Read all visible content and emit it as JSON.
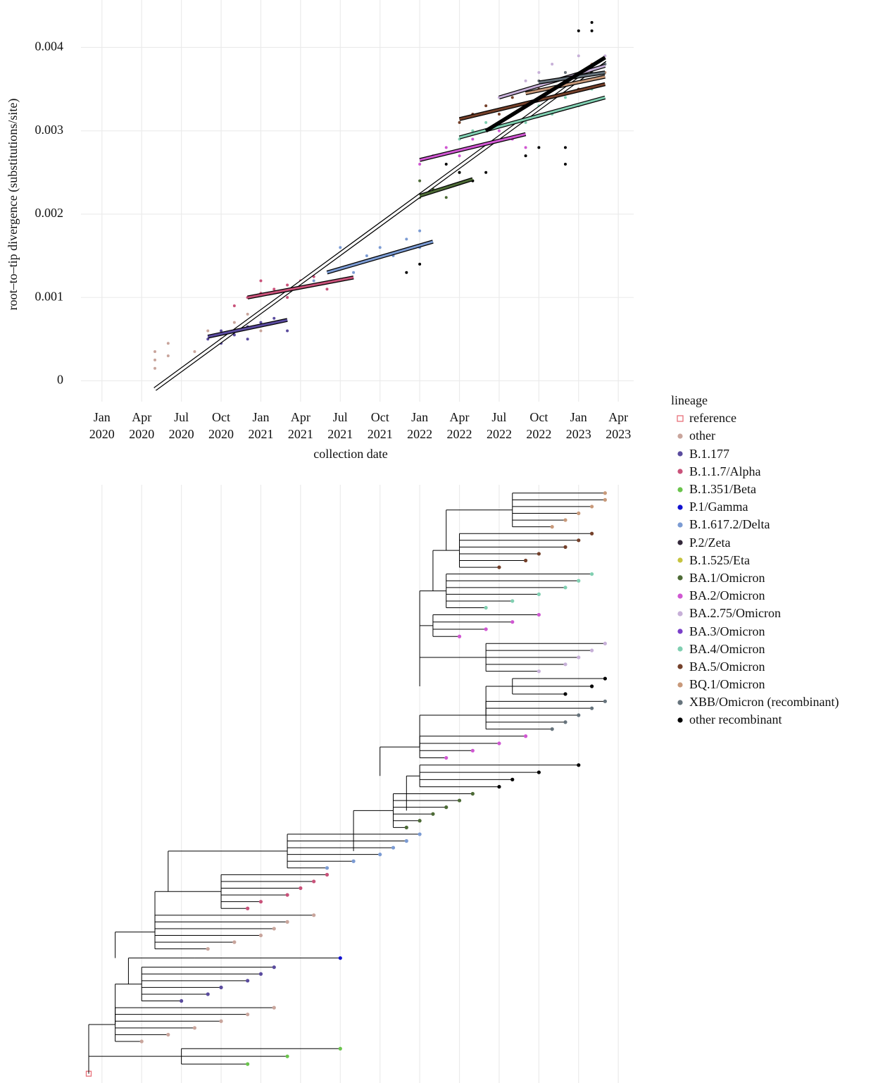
{
  "chart_data": [
    {
      "type": "scatter",
      "x_label": "collection date",
      "y_label": "root–to–tip divergence (substitutions/site)",
      "legend_title": "lineage",
      "legend": "right",
      "grid": true,
      "xlim": [
        "2019-12",
        "2023-05"
      ],
      "ylim": [
        -0.00025,
        0.00457
      ],
      "yticks": [
        0,
        0.001,
        0.002,
        0.003,
        0.004
      ],
      "xticks": [
        {
          "value": "2020-01",
          "label": "Jan\n2020"
        },
        {
          "value": "2020-04",
          "label": "Apr\n2020"
        },
        {
          "value": "2020-07",
          "label": "Jul\n2020"
        },
        {
          "value": "2020-10",
          "label": "Oct\n2020"
        },
        {
          "value": "2021-01",
          "label": "Jan\n2021"
        },
        {
          "value": "2021-04",
          "label": "Apr\n2021"
        },
        {
          "value": "2021-07",
          "label": "Jul\n2021"
        },
        {
          "value": "2021-10",
          "label": "Oct\n2021"
        },
        {
          "value": "2022-01",
          "label": "Jan\n2022"
        },
        {
          "value": "2022-04",
          "label": "Apr\n2022"
        },
        {
          "value": "2022-07",
          "label": "Jul\n2022"
        },
        {
          "value": "2022-10",
          "label": "Oct\n2022"
        },
        {
          "value": "2023-01",
          "label": "Jan\n2023"
        },
        {
          "value": "2023-04",
          "label": "Apr\n2023"
        }
      ],
      "overall_fit": {
        "x": [
          "2020-05",
          "2023-03"
        ],
        "values": [
          -0.0001,
          0.00385
        ]
      },
      "series": [
        {
          "name": "reference",
          "color": "#e8707a",
          "marker": "square-open",
          "x": [],
          "values": []
        },
        {
          "name": "other",
          "color": "#c9a59c",
          "x": [
            "2020-05",
            "2020-05",
            "2020-05",
            "2020-06",
            "2020-06",
            "2020-08",
            "2020-09",
            "2020-10",
            "2020-11",
            "2020-12",
            "2021-01"
          ],
          "values": [
            0.00015,
            0.00025,
            0.00035,
            0.0003,
            0.00045,
            0.00035,
            0.0006,
            0.0005,
            0.0007,
            0.0008,
            0.0006
          ]
        },
        {
          "name": "B.1.177",
          "color": "#5a4b9e",
          "x": [
            "2020-09",
            "2020-10",
            "2020-10",
            "2020-11",
            "2020-12",
            "2020-12",
            "2021-01",
            "2021-02",
            "2021-03"
          ],
          "values": [
            0.0005,
            0.00045,
            0.0006,
            0.00055,
            0.00065,
            0.0005,
            0.0007,
            0.00075,
            0.0006
          ],
          "fit": {
            "x": [
              "2020-09",
              "2021-03"
            ],
            "values": [
              0.00053,
              0.00073
            ]
          }
        },
        {
          "name": "B.1.1.7/Alpha",
          "color": "#c9527a",
          "x": [
            "2020-11",
            "2020-12",
            "2021-01",
            "2021-01",
            "2021-02",
            "2021-03",
            "2021-03",
            "2021-04",
            "2021-05",
            "2021-06"
          ],
          "values": [
            0.0009,
            0.001,
            0.00105,
            0.0012,
            0.0011,
            0.00115,
            0.001,
            0.0012,
            0.00125,
            0.0011
          ],
          "fit": {
            "x": [
              "2020-12",
              "2021-08"
            ],
            "values": [
              0.001,
              0.00124
            ]
          }
        },
        {
          "name": "B.1.351/Beta",
          "color": "#6ac44c",
          "x": [],
          "values": []
        },
        {
          "name": "P.1/Gamma",
          "color": "#1010d0",
          "x": [],
          "values": []
        },
        {
          "name": "B.1.617.2/Delta",
          "color": "#7b9bd3",
          "x": [
            "2021-05",
            "2021-06",
            "2021-07",
            "2021-08",
            "2021-09",
            "2021-10",
            "2021-11",
            "2021-12",
            "2022-01",
            "2022-01"
          ],
          "values": [
            0.0012,
            0.0014,
            0.0016,
            0.0013,
            0.0015,
            0.0016,
            0.0015,
            0.0017,
            0.0018,
            0.0016
          ],
          "fit": {
            "x": [
              "2021-06",
              "2022-02"
            ],
            "values": [
              0.0013,
              0.00167
            ]
          }
        },
        {
          "name": "P.2/Zeta",
          "color": "#33283a",
          "x": [],
          "values": []
        },
        {
          "name": "B.1.525/Eta",
          "color": "#c6c43f",
          "x": [],
          "values": []
        },
        {
          "name": "BA.1/Omicron",
          "color": "#4d6b36",
          "x": [
            "2021-12",
            "2022-01",
            "2022-01",
            "2022-02",
            "2022-03",
            "2022-04",
            "2022-05"
          ],
          "values": [
            0.0021,
            0.0022,
            0.0024,
            0.0023,
            0.0022,
            0.0025,
            0.0024
          ],
          "fit": {
            "x": [
              "2022-01",
              "2022-05"
            ],
            "values": [
              0.00222,
              0.00242
            ]
          }
        },
        {
          "name": "BA.2/Omicron",
          "color": "#d057d2",
          "x": [
            "2022-01",
            "2022-02",
            "2022-03",
            "2022-04",
            "2022-05",
            "2022-06",
            "2022-07",
            "2022-08",
            "2022-09"
          ],
          "values": [
            0.0026,
            0.0027,
            0.0028,
            0.0027,
            0.0029,
            0.0028,
            0.003,
            0.0029,
            0.0028
          ],
          "fit": {
            "x": [
              "2022-01",
              "2022-09"
            ],
            "values": [
              0.00265,
              0.00296
            ]
          }
        },
        {
          "name": "BA.2.75/Omicron",
          "color": "#c7b0d8",
          "x": [
            "2022-07",
            "2022-09",
            "2022-10",
            "2022-11",
            "2022-12",
            "2023-01",
            "2023-02",
            "2023-03"
          ],
          "values": [
            0.0034,
            0.0036,
            0.0037,
            0.0038,
            0.0036,
            0.0039,
            0.0038,
            0.0039
          ],
          "fit": {
            "x": [
              "2022-07",
              "2023-03"
            ],
            "values": [
              0.0034,
              0.00378
            ]
          }
        },
        {
          "name": "BA.3/Omicron",
          "color": "#7a3fc9",
          "x": [],
          "values": []
        },
        {
          "name": "BA.4/Omicron",
          "color": "#80cfb1",
          "x": [
            "2022-04",
            "2022-05",
            "2022-06",
            "2022-07",
            "2022-08",
            "2022-09",
            "2022-10",
            "2022-11",
            "2022-12",
            "2023-01",
            "2023-02"
          ],
          "values": [
            0.0029,
            0.003,
            0.0031,
            0.0029,
            0.0032,
            0.0031,
            0.0033,
            0.0032,
            0.0034,
            0.0033,
            0.0035
          ],
          "fit": {
            "x": [
              "2022-04",
              "2023-03"
            ],
            "values": [
              0.00292,
              0.0034
            ]
          }
        },
        {
          "name": "BA.5/Omicron",
          "color": "#74402a",
          "x": [
            "2022-04",
            "2022-05",
            "2022-06",
            "2022-07",
            "2022-08",
            "2022-09",
            "2022-10",
            "2022-11",
            "2022-12",
            "2023-01"
          ],
          "values": [
            0.0031,
            0.0032,
            0.0033,
            0.0032,
            0.0034,
            0.0033,
            0.0035,
            0.0034,
            0.0036,
            0.0035
          ],
          "fit": {
            "x": [
              "2022-04",
              "2023-03"
            ],
            "values": [
              0.00314,
              0.00356
            ]
          }
        },
        {
          "name": "BQ.1/Omicron",
          "color": "#c8997a",
          "x": [
            "2022-09",
            "2022-10",
            "2022-11",
            "2022-12",
            "2023-01",
            "2023-02",
            "2023-03"
          ],
          "values": [
            0.0035,
            0.0036,
            0.0035,
            0.0037,
            0.0036,
            0.0038,
            0.0037
          ],
          "fit": {
            "x": [
              "2022-09",
              "2023-03"
            ],
            "values": [
              0.00345,
              0.00365
            ]
          }
        },
        {
          "name": "XBB/Omicron (recombinant)",
          "color": "#66737c",
          "x": [
            "2022-10",
            "2022-11",
            "2022-12",
            "2023-01",
            "2023-02",
            "2023-03"
          ],
          "values": [
            0.0036,
            0.0035,
            0.0037,
            0.0036,
            0.0037,
            0.0038
          ],
          "fit": {
            "x": [
              "2022-10",
              "2023-03"
            ],
            "values": [
              0.00358,
              0.0037
            ]
          }
        },
        {
          "name": "other recombinant",
          "color": "#000000",
          "x": [
            "2021-12",
            "2022-01",
            "2022-03",
            "2022-04",
            "2022-05",
            "2022-06",
            "2022-09",
            "2022-10",
            "2022-12",
            "2022-12",
            "2023-01",
            "2023-02",
            "2023-02"
          ],
          "values": [
            0.0013,
            0.0014,
            0.0026,
            0.0025,
            0.0024,
            0.0025,
            0.0027,
            0.0028,
            0.0026,
            0.0028,
            0.0042,
            0.0043,
            0.0042
          ],
          "fit": {
            "x": [
              "2022-06",
              "2023-03"
            ],
            "values": [
              0.003,
              0.00388
            ]
          }
        }
      ]
    },
    {
      "type": "tree",
      "xlim": [
        "2019-12",
        "2023-05"
      ],
      "xticks": [
        "2020-01",
        "2020-04",
        "2020-07",
        "2020-10",
        "2021-01",
        "2021-04",
        "2021-07",
        "2021-10",
        "2022-01",
        "2022-04",
        "2022-07",
        "2022-10",
        "2023-01",
        "2023-04"
      ],
      "clades": [
        {
          "lineage": "reference",
          "branch": "2019-12",
          "root": "2019-12",
          "tips": [
            "2019-12"
          ]
        },
        {
          "lineage": "B.1.351/Beta",
          "branch": "2019-12",
          "root": "2020-07",
          "tips": [
            "2020-12",
            "2021-03",
            "2021-07"
          ]
        },
        {
          "lineage": "other",
          "branch": "2019-12",
          "root": "2020-02",
          "tips": [
            "2020-04",
            "2020-06",
            "2020-08",
            "2020-10",
            "2020-12",
            "2021-02"
          ]
        },
        {
          "lineage": "B.1.177",
          "branch": "2020-02",
          "root": "2020-04",
          "tips": [
            "2020-07",
            "2020-09",
            "2020-10",
            "2020-12",
            "2021-01",
            "2021-02"
          ]
        },
        {
          "lineage": "P.1/Gamma",
          "branch": "2020-03",
          "root": "2020-08",
          "tips": [
            "2021-07"
          ]
        },
        {
          "lineage": "other",
          "branch": "2020-02",
          "root": "2020-05",
          "tips": [
            "2020-09",
            "2020-11",
            "2021-01",
            "2021-02",
            "2021-03",
            "2021-05"
          ]
        },
        {
          "lineage": "B.1.1.7/Alpha",
          "branch": "2020-05",
          "root": "2020-10",
          "tips": [
            "2020-12",
            "2021-01",
            "2021-03",
            "2021-04",
            "2021-05",
            "2021-06"
          ]
        },
        {
          "lineage": "B.1.617.2/Delta",
          "branch": "2020-06",
          "root": "2021-03",
          "tips": [
            "2021-06",
            "2021-08",
            "2021-10",
            "2021-11",
            "2021-12",
            "2022-01"
          ]
        },
        {
          "lineage": "BA.1/Omicron",
          "branch": "2021-08",
          "root": "2021-11",
          "tips": [
            "2021-12",
            "2022-01",
            "2022-02",
            "2022-03",
            "2022-04",
            "2022-05"
          ]
        },
        {
          "lineage": "other recombinant",
          "branch": "2021-12",
          "root": "2022-01",
          "tips": [
            "2022-07",
            "2022-08",
            "2022-10",
            "2023-01"
          ]
        },
        {
          "lineage": "BA.2/Omicron",
          "branch": "2021-10",
          "root": "2022-01",
          "tips": [
            "2022-03",
            "2022-05",
            "2022-07",
            "2022-09"
          ]
        },
        {
          "lineage": "XBB/Omicron (recombinant)",
          "branch": "2022-01",
          "root": "2022-06",
          "tips": [
            "2022-11",
            "2022-12",
            "2023-01",
            "2023-02",
            "2023-03"
          ]
        },
        {
          "lineage": "other recombinant",
          "branch": "2022-06",
          "root": "2022-08",
          "tips": [
            "2022-12",
            "2023-02",
            "2023-03"
          ]
        },
        {
          "lineage": "BA.2.75/Omicron",
          "branch": "2022-01",
          "root": "2022-06",
          "tips": [
            "2022-10",
            "2022-12",
            "2023-01",
            "2023-02",
            "2023-03"
          ]
        },
        {
          "lineage": "BA.2/Omicron",
          "branch": "2022-01",
          "root": "2022-02",
          "tips": [
            "2022-04",
            "2022-06",
            "2022-08",
            "2022-10"
          ]
        },
        {
          "lineage": "BA.4/Omicron",
          "branch": "2022-01",
          "root": "2022-03",
          "tips": [
            "2022-06",
            "2022-08",
            "2022-10",
            "2022-12",
            "2023-01",
            "2023-02"
          ]
        },
        {
          "lineage": "BA.5/Omicron",
          "branch": "2022-02",
          "root": "2022-04",
          "tips": [
            "2022-07",
            "2022-09",
            "2022-10",
            "2022-12",
            "2023-01",
            "2023-02"
          ]
        },
        {
          "lineage": "BQ.1/Omicron",
          "branch": "2022-03",
          "root": "2022-08",
          "tips": [
            "2022-11",
            "2022-12",
            "2023-01",
            "2023-02",
            "2023-03",
            "2023-03"
          ]
        }
      ]
    }
  ]
}
